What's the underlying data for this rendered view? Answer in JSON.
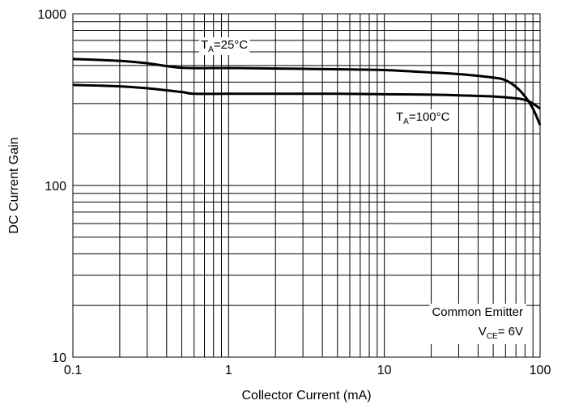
{
  "chart_data": {
    "type": "line",
    "title": "",
    "xlabel": "Collector Current (mA)",
    "ylabel": "DC Current Gain",
    "xscale": "log",
    "yscale": "log",
    "xlim": [
      0.1,
      100
    ],
    "ylim": [
      10,
      1000
    ],
    "grid": true,
    "x_tick_labels": [
      "0.1",
      "1",
      "10",
      "100"
    ],
    "y_tick_labels": [
      "10",
      "100",
      "1000"
    ],
    "line_color": "#000000",
    "series": [
      {
        "name": "",
        "label_main": "T",
        "label_sub": "A",
        "label_rest": "=25°C",
        "x": [
          0.1,
          0.2,
          0.3,
          0.5,
          1,
          2,
          5,
          10,
          20,
          30,
          50,
          60,
          70,
          80,
          90,
          100
        ],
        "y": [
          545,
          532,
          515,
          485,
          483,
          480,
          475,
          470,
          455,
          445,
          425,
          410,
          375,
          330,
          280,
          225
        ]
      },
      {
        "name": "",
        "label_main": "T",
        "label_sub": "A",
        "label_rest": "=100°C",
        "x": [
          0.1,
          0.2,
          0.3,
          0.5,
          0.6,
          1,
          2,
          5,
          10,
          20,
          30,
          50,
          70,
          80,
          90,
          100
        ],
        "y": [
          385,
          378,
          368,
          350,
          342,
          342,
          342,
          342,
          340,
          338,
          335,
          330,
          322,
          315,
          300,
          280
        ]
      }
    ],
    "annotation_line1": "Common Emitter",
    "annotation_line2_main": "V",
    "annotation_line2_sub": "CE",
    "annotation_line2_rest": "= 6V"
  }
}
